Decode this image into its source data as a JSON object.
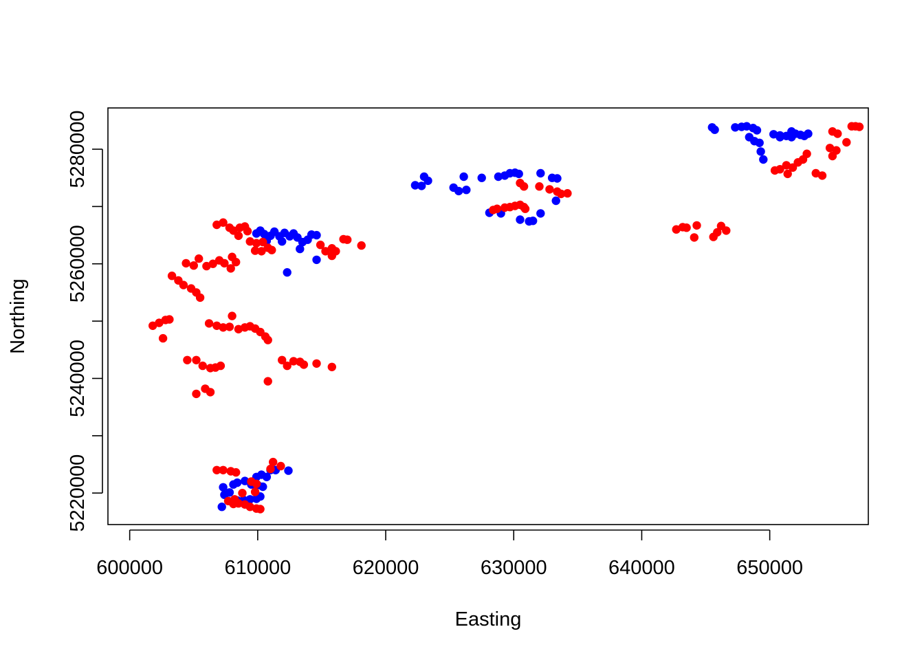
{
  "chart_data": {
    "type": "scatter",
    "title": "",
    "xlabel": "Easting",
    "ylabel": "Northing",
    "xlim": [
      598300,
      657700
    ],
    "ylim": [
      5214500,
      5287200
    ],
    "x_ticks": [
      600000,
      610000,
      620000,
      630000,
      640000,
      650000
    ],
    "x_tick_labels": [
      "600000",
      "610000",
      "620000",
      "630000",
      "640000",
      "650000"
    ],
    "y_ticks": [
      5220000,
      5230000,
      5240000,
      5250000,
      5260000,
      5270000,
      5280000
    ],
    "y_tick_labels": [
      "5220000",
      "",
      "5240000",
      "",
      "5260000",
      "",
      "5280000"
    ],
    "grid": false,
    "legend": "none",
    "series": [
      {
        "color": "#0000ff",
        "points": [
          [
            609900,
            5265300
          ],
          [
            610200,
            5265800
          ],
          [
            610500,
            5265200
          ],
          [
            610800,
            5264700
          ],
          [
            611000,
            5264900
          ],
          [
            611300,
            5265600
          ],
          [
            611700,
            5264800
          ],
          [
            612100,
            5265400
          ],
          [
            612500,
            5264800
          ],
          [
            612800,
            5265300
          ],
          [
            613100,
            5264600
          ],
          [
            613500,
            5263800
          ],
          [
            613900,
            5264200
          ],
          [
            614200,
            5265100
          ],
          [
            614600,
            5265000
          ],
          [
            613300,
            5262600
          ],
          [
            612300,
            5258500
          ],
          [
            614600,
            5260700
          ],
          [
            611900,
            5263900
          ],
          [
            610700,
            5264000
          ],
          [
            622300,
            5273700
          ],
          [
            622800,
            5273600
          ],
          [
            623300,
            5274500
          ],
          [
            623000,
            5275200
          ],
          [
            625300,
            5273300
          ],
          [
            625700,
            5272700
          ],
          [
            626300,
            5272900
          ],
          [
            626100,
            5275200
          ],
          [
            627500,
            5275000
          ],
          [
            628800,
            5275200
          ],
          [
            629300,
            5275400
          ],
          [
            629700,
            5275800
          ],
          [
            630100,
            5275900
          ],
          [
            630400,
            5275700
          ],
          [
            632100,
            5275800
          ],
          [
            633000,
            5275000
          ],
          [
            633400,
            5274900
          ],
          [
            628100,
            5268900
          ],
          [
            629000,
            5268800
          ],
          [
            630500,
            5267700
          ],
          [
            631200,
            5267400
          ],
          [
            631500,
            5267500
          ],
          [
            632100,
            5268800
          ],
          [
            633300,
            5271000
          ],
          [
            645500,
            5283800
          ],
          [
            645700,
            5283400
          ],
          [
            647300,
            5283800
          ],
          [
            647800,
            5283900
          ],
          [
            648200,
            5284000
          ],
          [
            648700,
            5283700
          ],
          [
            649000,
            5283300
          ],
          [
            648400,
            5282100
          ],
          [
            648800,
            5281400
          ],
          [
            649200,
            5281100
          ],
          [
            649300,
            5279600
          ],
          [
            649500,
            5278200
          ],
          [
            650300,
            5282600
          ],
          [
            650800,
            5282400
          ],
          [
            651300,
            5282300
          ],
          [
            651700,
            5282100
          ],
          [
            652000,
            5282700
          ],
          [
            652400,
            5282500
          ],
          [
            652700,
            5282300
          ],
          [
            653000,
            5282700
          ],
          [
            651700,
            5283100
          ],
          [
            650800,
            5282100
          ],
          [
            607200,
            5217600
          ],
          [
            607400,
            5219700
          ],
          [
            607800,
            5220100
          ],
          [
            607300,
            5221000
          ],
          [
            608100,
            5221500
          ],
          [
            608400,
            5221800
          ],
          [
            609000,
            5222100
          ],
          [
            609500,
            5221500
          ],
          [
            610000,
            5221400
          ],
          [
            610400,
            5221100
          ],
          [
            609900,
            5222800
          ],
          [
            610300,
            5223200
          ],
          [
            610700,
            5222800
          ],
          [
            611000,
            5224000
          ],
          [
            611400,
            5224000
          ],
          [
            612400,
            5223900
          ],
          [
            608400,
            5218700
          ],
          [
            608900,
            5218800
          ],
          [
            609400,
            5218900
          ],
          [
            609900,
            5219000
          ],
          [
            610200,
            5219400
          ]
        ]
      },
      {
        "color": "#ff0000",
        "points": [
          [
            601800,
            5249200
          ],
          [
            602300,
            5249700
          ],
          [
            602800,
            5250200
          ],
          [
            603100,
            5250300
          ],
          [
            602600,
            5247000
          ],
          [
            603300,
            5257900
          ],
          [
            603800,
            5257100
          ],
          [
            604200,
            5256300
          ],
          [
            604800,
            5255700
          ],
          [
            605200,
            5255000
          ],
          [
            605500,
            5254100
          ],
          [
            604400,
            5260100
          ],
          [
            605000,
            5259700
          ],
          [
            605400,
            5260900
          ],
          [
            606000,
            5259600
          ],
          [
            606500,
            5260000
          ],
          [
            607000,
            5260600
          ],
          [
            607400,
            5260100
          ],
          [
            607900,
            5259200
          ],
          [
            608300,
            5260300
          ],
          [
            608000,
            5261200
          ],
          [
            604500,
            5243200
          ],
          [
            605200,
            5243200
          ],
          [
            605700,
            5242200
          ],
          [
            606300,
            5241800
          ],
          [
            606700,
            5241900
          ],
          [
            607100,
            5242200
          ],
          [
            605200,
            5237300
          ],
          [
            605900,
            5238200
          ],
          [
            606300,
            5237600
          ],
          [
            606200,
            5249600
          ],
          [
            606800,
            5249200
          ],
          [
            607300,
            5248900
          ],
          [
            607800,
            5249000
          ],
          [
            608000,
            5250900
          ],
          [
            608500,
            5248600
          ],
          [
            609000,
            5248900
          ],
          [
            609400,
            5249100
          ],
          [
            609800,
            5248700
          ],
          [
            610200,
            5248100
          ],
          [
            610600,
            5247300
          ],
          [
            610800,
            5246700
          ],
          [
            611900,
            5243200
          ],
          [
            612300,
            5242200
          ],
          [
            612800,
            5243000
          ],
          [
            613300,
            5242900
          ],
          [
            613600,
            5242400
          ],
          [
            614600,
            5242600
          ],
          [
            615800,
            5242000
          ],
          [
            610800,
            5239500
          ],
          [
            606800,
            5266800
          ],
          [
            607300,
            5267200
          ],
          [
            607800,
            5266300
          ],
          [
            608100,
            5265800
          ],
          [
            608600,
            5266300
          ],
          [
            609000,
            5266500
          ],
          [
            609200,
            5265700
          ],
          [
            608500,
            5264900
          ],
          [
            609400,
            5263900
          ],
          [
            609900,
            5263600
          ],
          [
            610400,
            5263800
          ],
          [
            610800,
            5262800
          ],
          [
            610300,
            5262200
          ],
          [
            609800,
            5262300
          ],
          [
            611100,
            5262400
          ],
          [
            614900,
            5263300
          ],
          [
            615300,
            5262200
          ],
          [
            615800,
            5262700
          ],
          [
            616100,
            5262200
          ],
          [
            616700,
            5264300
          ],
          [
            617000,
            5264200
          ],
          [
            618100,
            5263200
          ],
          [
            615800,
            5261400
          ],
          [
            628400,
            5269400
          ],
          [
            628700,
            5269600
          ],
          [
            629300,
            5269800
          ],
          [
            629700,
            5269900
          ],
          [
            630100,
            5270100
          ],
          [
            630500,
            5270300
          ],
          [
            630800,
            5269900
          ],
          [
            630900,
            5269600
          ],
          [
            630500,
            5274100
          ],
          [
            630800,
            5273500
          ],
          [
            632000,
            5273500
          ],
          [
            632800,
            5273000
          ],
          [
            633400,
            5272600
          ],
          [
            633700,
            5272200
          ],
          [
            634200,
            5272300
          ],
          [
            642700,
            5266000
          ],
          [
            643200,
            5266400
          ],
          [
            643500,
            5266300
          ],
          [
            644300,
            5266700
          ],
          [
            644100,
            5264600
          ],
          [
            645600,
            5264700
          ],
          [
            645900,
            5265500
          ],
          [
            646200,
            5266600
          ],
          [
            646600,
            5265800
          ],
          [
            650400,
            5276300
          ],
          [
            650800,
            5276500
          ],
          [
            651300,
            5277200
          ],
          [
            651400,
            5275700
          ],
          [
            651800,
            5276800
          ],
          [
            652200,
            5277700
          ],
          [
            652600,
            5278200
          ],
          [
            652900,
            5279200
          ],
          [
            653600,
            5275800
          ],
          [
            654100,
            5275400
          ],
          [
            654700,
            5280200
          ],
          [
            654900,
            5278800
          ],
          [
            655200,
            5279800
          ],
          [
            654900,
            5283100
          ],
          [
            655300,
            5282700
          ],
          [
            656000,
            5281200
          ],
          [
            656400,
            5284000
          ],
          [
            656700,
            5284000
          ],
          [
            657000,
            5283900
          ],
          [
            606800,
            5224000
          ],
          [
            607300,
            5224000
          ],
          [
            607900,
            5223800
          ],
          [
            608300,
            5223600
          ],
          [
            608800,
            5220000
          ],
          [
            609500,
            5222000
          ],
          [
            609900,
            5221600
          ],
          [
            609800,
            5220200
          ],
          [
            608100,
            5218100
          ],
          [
            608500,
            5218200
          ],
          [
            609000,
            5218000
          ],
          [
            609400,
            5217600
          ],
          [
            609900,
            5217300
          ],
          [
            610200,
            5217200
          ],
          [
            611000,
            5224200
          ],
          [
            611200,
            5225400
          ],
          [
            611800,
            5224700
          ],
          [
            607700,
            5218600
          ],
          [
            608200,
            5218900
          ]
        ]
      }
    ]
  }
}
